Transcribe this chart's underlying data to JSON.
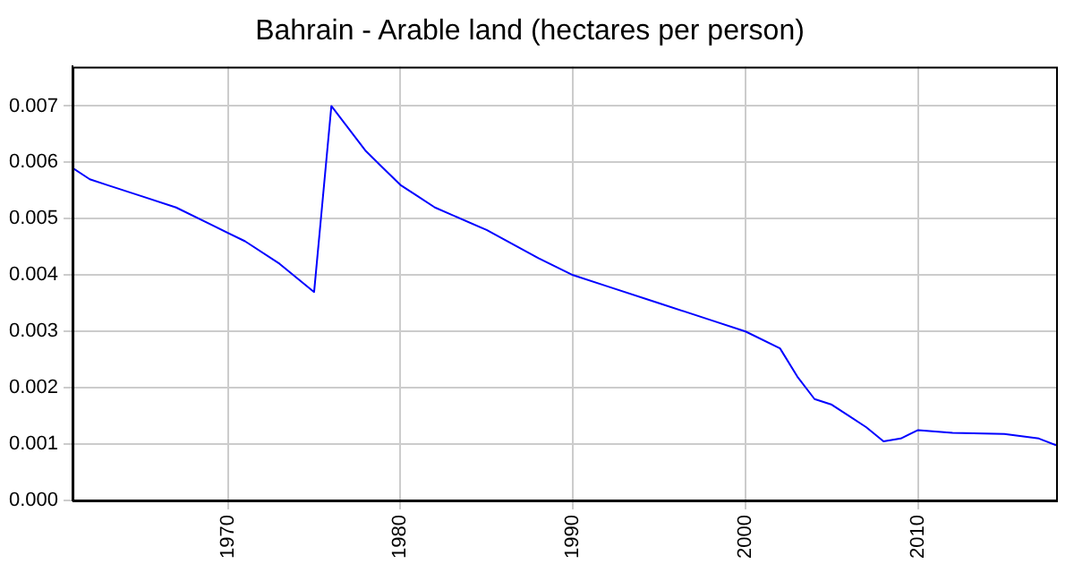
{
  "chart_data": {
    "type": "line",
    "title": "Bahrain - Arable land (hectares per person)",
    "x": [
      1961,
      1962,
      1963,
      1965,
      1967,
      1969,
      1971,
      1973,
      1975,
      1976,
      1977,
      1978,
      1979,
      1980,
      1981,
      1982,
      1985,
      1988,
      1990,
      1992,
      1995,
      1998,
      2000,
      2002,
      2003,
      2004,
      2005,
      2006,
      2007,
      2008,
      2009,
      2010,
      2012,
      2015,
      2017,
      2018
    ],
    "series": [
      {
        "color": "#0000ff",
        "values": [
          0.0059,
          0.0057,
          0.0056,
          0.0054,
          0.0052,
          0.0049,
          0.0046,
          0.0042,
          0.0037,
          0.007,
          0.0066,
          0.0062,
          0.0059,
          0.0056,
          0.0054,
          0.0052,
          0.0048,
          0.0043,
          0.004,
          0.0038,
          0.0035,
          0.0032,
          0.003,
          0.0027,
          0.0022,
          0.0018,
          0.0017,
          0.0015,
          0.0013,
          0.00105,
          0.0011,
          0.00125,
          0.0012,
          0.00118,
          0.0011,
          0.00098
        ]
      }
    ],
    "xlim": [
      1961,
      2018
    ],
    "xticks": [
      1970,
      1980,
      1990,
      2000,
      2010
    ],
    "ylim": [
      0,
      0.0077
    ],
    "yticks": [
      {
        "value": 0,
        "label": "0.000"
      },
      {
        "value": 0.001,
        "label": "0.001"
      },
      {
        "value": 0.002,
        "label": "0.002"
      },
      {
        "value": 0.003,
        "label": "0.003"
      },
      {
        "value": 0.004,
        "label": "0.004"
      },
      {
        "value": 0.005,
        "label": "0.005"
      },
      {
        "value": 0.006,
        "label": "0.006"
      },
      {
        "value": 0.007,
        "label": "0.007"
      }
    ],
    "grid": true,
    "legend": false,
    "marker": "none",
    "line_style": "solid"
  }
}
